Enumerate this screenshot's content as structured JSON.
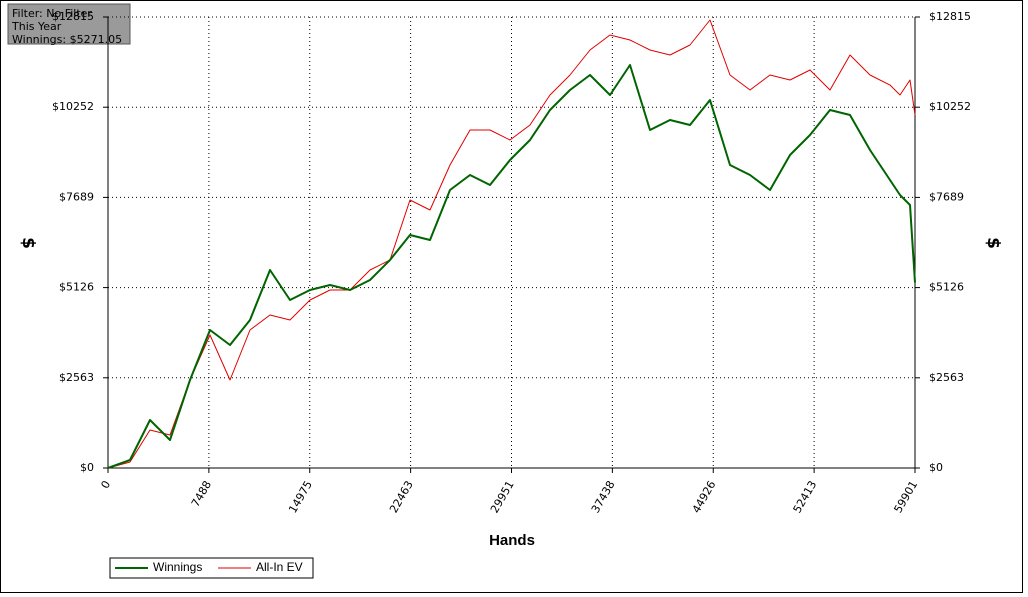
{
  "chart_data": {
    "type": "line",
    "annotations": [
      "Filter: No Filter",
      "This Year",
      "Winnings: $5271.05"
    ],
    "xlabel": "Hands",
    "ylabel": "$",
    "y2label": "$",
    "x": [
      0,
      1633,
      3118,
      4602,
      6087,
      7572,
      9056,
      10540,
      12025,
      13510,
      14994,
      16479,
      17963,
      19447,
      20932,
      22417,
      23901,
      25385,
      26870,
      28355,
      29839,
      31324,
      32808,
      34293,
      35777,
      37262,
      38747,
      40231,
      41716,
      43200,
      44685,
      46169,
      47654,
      49138,
      50623,
      52107,
      53592,
      55076,
      56561,
      58046,
      58788,
      59530,
      59901
    ],
    "series": [
      {
        "name": "Winnings",
        "color": "#006400",
        "width": 2,
        "values": [
          0,
          227,
          1364,
          796,
          2500,
          3921,
          3495,
          4206,
          5626,
          4774,
          5058,
          5200,
          5058,
          5342,
          5910,
          6621,
          6479,
          7899,
          8326,
          8041,
          8752,
          9320,
          10173,
          10741,
          11167,
          10599,
          11451,
          9604,
          9888,
          9746,
          10457,
          8610,
          8326,
          7899,
          8894,
          9462,
          10173,
          10030,
          9036,
          8184,
          7757,
          7473,
          5271
        ]
      },
      {
        "name": "All-In EV",
        "color": "#e00000",
        "width": 1,
        "values": [
          0,
          170,
          1080,
          938,
          2500,
          3779,
          2500,
          3921,
          4348,
          4206,
          4774,
          5058,
          5058,
          5626,
          5910,
          7615,
          7331,
          8610,
          9604,
          9604,
          9320,
          9746,
          10599,
          11167,
          11877,
          12304,
          12162,
          11877,
          11735,
          12020,
          12730,
          11167,
          10741,
          11167,
          11025,
          11309,
          10741,
          11735,
          11167,
          10883,
          10599,
          11025,
          10030
        ]
      }
    ],
    "xlim": [
      0,
      59901
    ],
    "xticks": [
      0,
      7488,
      14975,
      22463,
      29951,
      37438,
      44926,
      52413,
      59901
    ],
    "ylim": [
      0,
      12815
    ],
    "yticks": [
      {
        "value": 0,
        "label": "$0"
      },
      {
        "value": 2563,
        "label": "$2563"
      },
      {
        "value": 5126,
        "label": "$5126"
      },
      {
        "value": 7689,
        "label": "$7689"
      },
      {
        "value": 10252,
        "label": "$10252"
      },
      {
        "value": 12815,
        "label": "$12815"
      }
    ],
    "y2lim": [
      0,
      12815
    ],
    "y2ticks": [
      {
        "value": 0,
        "label": "$0"
      },
      {
        "value": 2563,
        "label": "$2563"
      },
      {
        "value": 5126,
        "label": "$5126"
      },
      {
        "value": 7689,
        "label": "$7689"
      },
      {
        "value": 10252,
        "label": "$10252"
      },
      {
        "value": 12815,
        "label": "$12815"
      }
    ],
    "grid": true,
    "legend": "bottom-left"
  }
}
